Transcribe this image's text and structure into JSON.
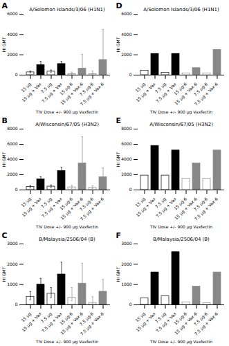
{
  "chart_data": [
    {
      "type": "bar",
      "title": "A/Solomon Islands/3/06 (H1N1)",
      "annotations": [
        "A"
      ],
      "xlabel": "TIV Dose +/- 900 μg Vaxfectin",
      "ylabel": "HI GMT",
      "categories": [
        "15 μg",
        "15 μg + Vax",
        "7.5 μg",
        "7.5 μg + Vax",
        "15 μg-6",
        "15 μg + Vax-6",
        "7.5 μg-6",
        "7.5 μg + Vax-6"
      ],
      "values": [
        280,
        1000,
        350,
        1100,
        100,
        650,
        100,
        1500
      ],
      "err_lo": [
        80,
        200,
        100,
        200,
        40,
        250,
        40,
        600
      ],
      "err_hi": [
        120,
        350,
        150,
        250,
        200,
        1400,
        300,
        3000
      ],
      "colors": [
        "white",
        "black",
        "white",
        "black",
        "white",
        "#888888",
        "white",
        "#888888"
      ],
      "ylim": [
        0,
        6000
      ],
      "yticks": [
        0,
        2000,
        4000,
        6000
      ]
    },
    {
      "type": "bar",
      "title": "A/Solomon Islands/3/06 (H1N1)",
      "annotations": [
        "D"
      ],
      "xlabel": "TIV Dose +/- 900 μg Vaxfectin",
      "ylabel": "HI GMT",
      "categories": [
        "15 μg",
        "15 μg + Vax",
        "7.5 μg",
        "7.5 μg + Vax",
        "15 μg-6",
        "15 μg + Vax-6",
        "7.5 μg-6",
        "7.5 μg + Vax-6"
      ],
      "values": [
        450,
        2100,
        250,
        2100,
        180,
        700,
        180,
        2500
      ],
      "colors": [
        "white",
        "black",
        "white",
        "black",
        "white",
        "#888888",
        "white",
        "#888888"
      ],
      "ylim": [
        0,
        6000
      ],
      "yticks": [
        0,
        2000,
        4000,
        6000
      ]
    },
    {
      "type": "bar",
      "title": "A/Wisconsin/67/05 (H3N2)",
      "annotations": [
        "B"
      ],
      "xlabel": "TIV Dose +/- 900 μg Vaxfectin",
      "ylabel": "HI GMT",
      "categories": [
        "15 μg",
        "15 μg + Vax",
        "7.5 μg",
        "7.5 μg + Vax",
        "15 μg-6",
        "15 μg + Vax-6",
        "7.5 μg-6",
        "7.5 μg + Vax-6"
      ],
      "values": [
        400,
        1400,
        450,
        2500,
        350,
        3500,
        300,
        1700
      ],
      "err_lo": [
        150,
        250,
        150,
        400,
        150,
        1200,
        130,
        600
      ],
      "err_hi": [
        200,
        350,
        200,
        500,
        250,
        3500,
        250,
        1200
      ],
      "colors": [
        "white",
        "black",
        "white",
        "black",
        "white",
        "#888888",
        "white",
        "#888888"
      ],
      "ylim": [
        0,
        8000
      ],
      "yticks": [
        0,
        2000,
        4000,
        6000,
        8000
      ]
    },
    {
      "type": "bar",
      "title": "A/Wisconsin/67/05 (H3N2)",
      "annotations": [
        "E"
      ],
      "xlabel": "TIV Dose +/- 900 μg Vaxfectin",
      "ylabel": "HI GMT",
      "categories": [
        "15 μg",
        "15 μg + Vax",
        "7.5 μg",
        "7.5 μg + Vax",
        "15 μg-6",
        "15 μg + Vax-6",
        "7.5 μg-6",
        "7.5 μg + Vax-6"
      ],
      "values": [
        1900,
        5800,
        1900,
        5200,
        1500,
        3500,
        1500,
        5200
      ],
      "colors": [
        "white",
        "black",
        "white",
        "black",
        "white",
        "#888888",
        "white",
        "#888888"
      ],
      "ylim": [
        0,
        8000
      ],
      "yticks": [
        0,
        2000,
        4000,
        6000,
        8000
      ]
    },
    {
      "type": "bar",
      "title": "B/Malaysia/2506/04 (B)",
      "annotations": [
        "C"
      ],
      "xlabel": "TIV Dose +/- 900 μg Vaxfectin",
      "ylabel": "HI GMT",
      "categories": [
        "15 μg",
        "15 μg + Vax",
        "7.5 μg",
        "7.5 μg + Vax",
        "15 μg-6",
        "15 μg + Vax-6",
        "7.5 μg-6",
        "7.5 μg + Vax-6"
      ],
      "values": [
        400,
        1000,
        550,
        1500,
        350,
        1050,
        100,
        650
      ],
      "err_lo": [
        150,
        200,
        200,
        350,
        150,
        350,
        50,
        200
      ],
      "err_hi": [
        250,
        300,
        300,
        600,
        500,
        1000,
        300,
        600
      ],
      "colors": [
        "white",
        "black",
        "white",
        "black",
        "white",
        "#888888",
        "white",
        "#888888"
      ],
      "ylim": [
        0,
        3000
      ],
      "yticks": [
        0,
        1000,
        2000,
        3000
      ]
    },
    {
      "type": "bar",
      "title": "B/Malaysia/2506/04 (B)",
      "annotations": [
        "F"
      ],
      "xlabel": "TIV Dose +/- 900 μg Vaxfectin",
      "ylabel": "HI GMT",
      "categories": [
        "15 μg",
        "15 μg + Vax",
        "7.5 μg",
        "7.5 μg + Vax",
        "15 μg-6",
        "15 μg + Vax-6",
        "7.5 μg-6",
        "7.5 μg + Vax-6"
      ],
      "values": [
        320,
        1600,
        430,
        2600,
        130,
        900,
        80,
        1600
      ],
      "colors": [
        "white",
        "black",
        "white",
        "black",
        "white",
        "#888888",
        "white",
        "#888888"
      ],
      "ylim": [
        0,
        3000
      ],
      "yticks": [
        0,
        1000,
        2000,
        3000
      ]
    }
  ]
}
